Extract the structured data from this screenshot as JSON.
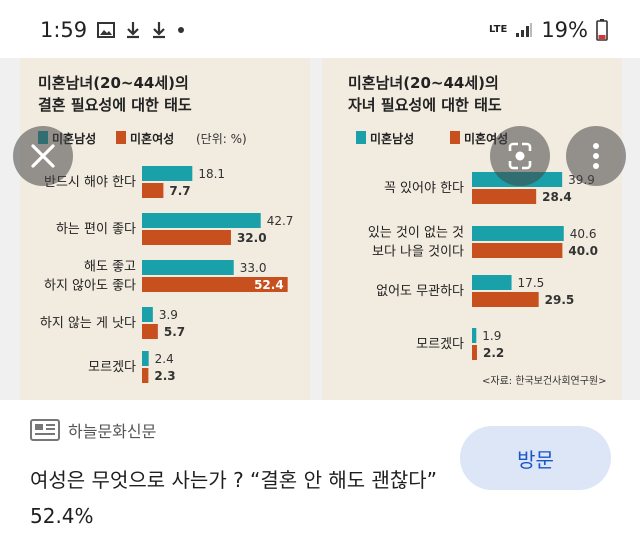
{
  "status_bar": {
    "time": "1:59",
    "network": "LTE",
    "battery": "19%",
    "left_icons": [
      "image-icon",
      "download-icon",
      "download-icon",
      "dot-icon"
    ]
  },
  "chart_left": {
    "title_line1": "미혼남녀(20~44세)의",
    "title_line2": "결혼 필요성에 대한 태도",
    "legend_male": "미혼남성",
    "legend_female": "미혼여성",
    "unit": "(단위: %)"
  },
  "chart_right": {
    "title_line1": "미혼남녀(20~44세)의",
    "title_line2": "자녀 필요성에 대한 태도",
    "legend_male": "미혼남성",
    "legend_female": "미혼여성",
    "source": "<자료: 한국보건사회연구원>"
  },
  "chart_data": [
    {
      "type": "bar",
      "orientation": "horizontal",
      "title": "미혼남녀(20~44세)의 결혼 필요성에 대한 태도",
      "unit": "%",
      "categories": [
        "반드시 해야 한다",
        "하는 편이 좋다",
        "해도 좋고 하지 않아도 좋다",
        "하지 않는 게 낫다",
        "모르겠다"
      ],
      "series": [
        {
          "name": "미혼남성",
          "values": [
            18.1,
            42.7,
            33.0,
            3.9,
            2.4
          ]
        },
        {
          "name": "미혼여성",
          "values": [
            7.7,
            32.0,
            52.4,
            5.7,
            2.3
          ]
        }
      ],
      "colors": {
        "male": "#1aa0a8",
        "female": "#c8501e"
      }
    },
    {
      "type": "bar",
      "orientation": "horizontal",
      "title": "미혼남녀(20~44세)의 자녀 필요성에 대한 태도",
      "unit": "%",
      "categories": [
        "꼭 있어야 한다",
        "있는 것이 없는 것 보다 나을 것이다",
        "없어도 무관하다",
        "모르겠다"
      ],
      "series": [
        {
          "name": "미혼남성",
          "values": [
            39.9,
            40.6,
            17.5,
            1.9
          ]
        },
        {
          "name": "미혼여성",
          "values": [
            28.4,
            40.0,
            29.5,
            2.2
          ]
        }
      ],
      "colors": {
        "male": "#1aa0a8",
        "female": "#c8501e"
      }
    }
  ],
  "card": {
    "source_name": "하늘문화신문",
    "headline": "여성은 무엇으로 사는가 ? “결혼 안 해도 괜찮다” 52.4%",
    "visit_label": "방문"
  },
  "colors": {
    "accent_blue": "#1a56c8",
    "visit_bg": "#dde6f6",
    "bar_teal": "#1aa0a8",
    "bar_orange": "#c8501e",
    "panel_bg": "#f2ece0"
  }
}
